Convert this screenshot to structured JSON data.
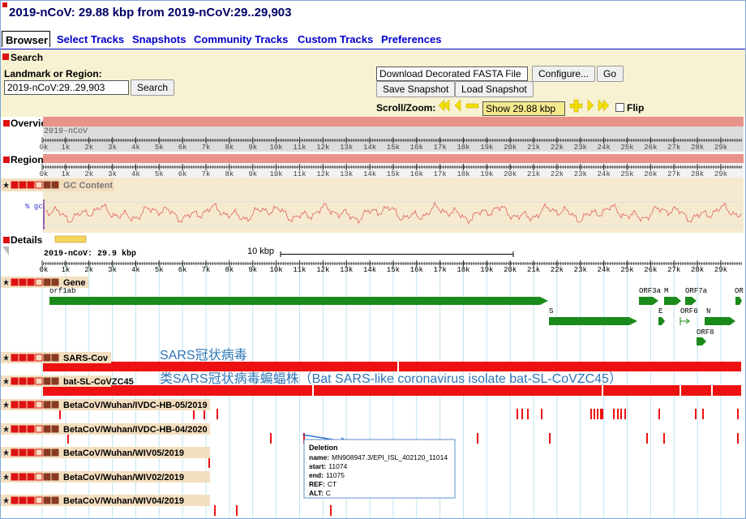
{
  "header": {
    "title": "2019-nCoV: 29.88 kbp from 2019-nCoV:29..29,903"
  },
  "tabs": [
    "Browser",
    "Select Tracks",
    "Snapshots",
    "Community Tracks",
    "Custom Tracks",
    "Preferences"
  ],
  "search": {
    "title": "Search",
    "landmark_label": "Landmark or Region:",
    "landmark_value": "2019-nCoV:29..29,903",
    "search_button": "Search",
    "download_option": "Download Decorated FASTA File",
    "configure_button": "Configure...",
    "go_button": "Go",
    "save_snapshot": "Save Snapshot",
    "load_snapshot": "Load Snapshot",
    "scroll_zoom_label": "Scroll/Zoom:",
    "zoom_option": "Show 29.88 kbp",
    "flip_label": "Flip"
  },
  "overview": {
    "title": "Overview",
    "landmark": "2019-nCoV"
  },
  "region": {
    "title": "Region",
    "gc_track": "GC Content",
    "gc_axis_label": "% gc"
  },
  "details": {
    "title": "Details",
    "landmark": "2019-nCoV: 29.9 kbp",
    "scale_label": "10 kbp",
    "gene_track": "Gene",
    "genes": [
      "orf1ab",
      "S",
      "ORF3a",
      "M",
      "ORF7a",
      "OR",
      "E",
      "ORF6",
      "N",
      "ORF8"
    ]
  },
  "ruler_labels": [
    "0k",
    "1k",
    "2k",
    "3k",
    "4k",
    "5k",
    "6k",
    "7k",
    "8k",
    "9k",
    "10k",
    "11k",
    "12k",
    "13k",
    "14k",
    "15k",
    "16k",
    "17k",
    "18k",
    "19k",
    "20k",
    "21k",
    "22k",
    "23k",
    "24k",
    "25k",
    "26k",
    "27k",
    "28k",
    "29k"
  ],
  "tracks": [
    {
      "name": "SARS-Cov",
      "annotation": "SARS冠状病毒"
    },
    {
      "name": "bat-SL-CoVZC45",
      "annotation": "类SARS冠状病毒蝙蝠株（Bat SARS-like coronavirus isolate bat-SL-CoVZC45）"
    },
    {
      "name": "BetaCoV/Wuhan/IVDC-HB-05/2019"
    },
    {
      "name": "BetaCoV/Wuhan/IVDC-HB-04/2020"
    },
    {
      "name": "BetaCoV/Wuhan/WIV05/2019"
    },
    {
      "name": "BetaCoV/Wuhan/WIV02/2019"
    },
    {
      "name": "BetaCoV/Wuhan/WIV04/2019"
    }
  ],
  "tooltip": {
    "title": "Deletion",
    "lines": [
      {
        "key": "name:",
        "value": "MN908947.3/EPI_ISL_402120_11014"
      },
      {
        "key": "start:",
        "value": "11074"
      },
      {
        "key": "end:",
        "value": "11075"
      },
      {
        "key": "REF:",
        "value": "CT"
      },
      {
        "key": "ALT:",
        "value": "C"
      }
    ]
  }
}
